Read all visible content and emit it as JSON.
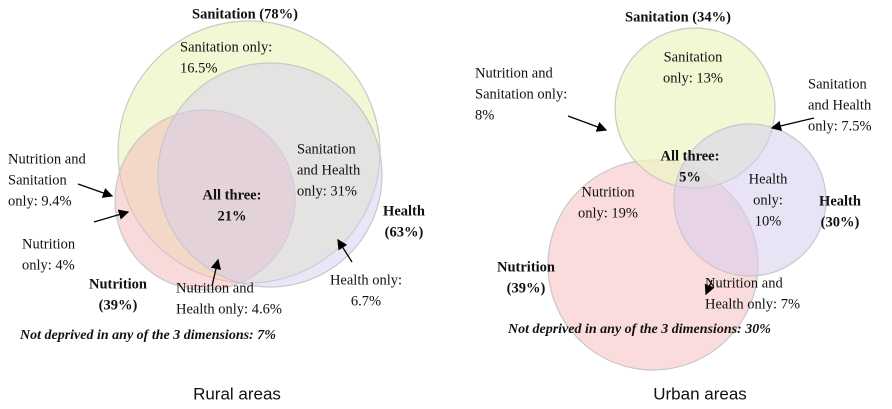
{
  "panels": [
    {
      "caption": "Rural areas",
      "sanitation_label": [
        "Sanitation (78%)"
      ],
      "health_label": [
        "Health",
        "(63%)"
      ],
      "nutrition_label": [
        "Nutrition",
        "(39%)"
      ],
      "sanitation_only": [
        "Sanitation only:",
        "16.5%"
      ],
      "sanitation_health": [
        "Sanitation",
        "and Health",
        "only: 31%"
      ],
      "nutrition_sanitation": [
        "Nutrition and",
        "Sanitation",
        "only: 9.4%"
      ],
      "all_three": [
        "All three:",
        "21%"
      ],
      "nutrition_only": [
        "Nutrition",
        "only: 4%"
      ],
      "nutrition_health": [
        "Nutrition and",
        "Health only: 4.6%"
      ],
      "health_only": [
        "Health only:",
        "6.7%"
      ],
      "footnote": [
        "Not deprived in any of the 3 dimensions: 7%"
      ]
    },
    {
      "caption": "Urban areas",
      "sanitation_label": [
        "Sanitation (34%)"
      ],
      "health_label": [
        "Health",
        "(30%)"
      ],
      "nutrition_label": [
        "Nutrition",
        "(39%)"
      ],
      "sanitation_only": [
        "Sanitation",
        "only: 13%"
      ],
      "sanitation_health": [
        "Sanitation",
        "and Health",
        "only: 7.5%"
      ],
      "nutrition_sanitation": [
        "Nutrition and",
        "Sanitation only:",
        "8%"
      ],
      "all_three": [
        "All three:",
        "5%"
      ],
      "nutrition_only": [
        "Nutrition",
        "only: 19%"
      ],
      "nutrition_health": [
        "Nutrition and",
        "Health only: 7%"
      ],
      "health_only": [
        "Health",
        "only:",
        "10%"
      ],
      "footnote": [
        "Not deprived in any of the 3 dimensions: 30%"
      ]
    }
  ]
}
